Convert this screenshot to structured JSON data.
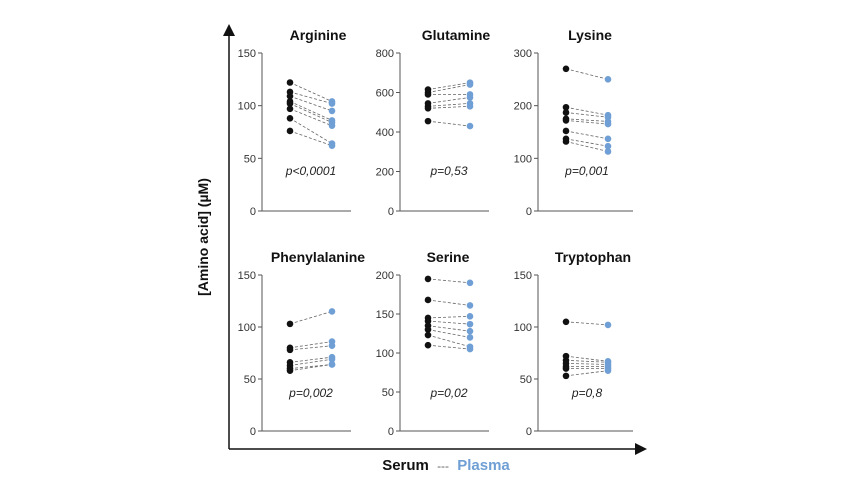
{
  "y_axis_label": "[Amino acid] (µM)",
  "legend": {
    "serum": "Serum",
    "separator": "---",
    "plasma": "Plasma",
    "serum_color": "#111111",
    "plasma_color": "#6f9fd4",
    "separator_color": "#666666"
  },
  "chart_data": [
    {
      "type": "scatter",
      "title": "Arginine",
      "ylim": [
        0,
        150
      ],
      "yticks": [
        "0",
        "50",
        "100",
        "150"
      ],
      "p_value": "p<0,0001",
      "series": [
        {
          "name": "Serum",
          "values": [
            122,
            113,
            109,
            104,
            102,
            97,
            88,
            76
          ]
        },
        {
          "name": "Plasma",
          "values": [
            104,
            102,
            95,
            86,
            84,
            81,
            64,
            62
          ]
        }
      ]
    },
    {
      "type": "scatter",
      "title": "Glutamine",
      "ylim": [
        0,
        800
      ],
      "yticks": [
        "0",
        "200",
        "400",
        "600",
        "800"
      ],
      "p_value": "p=0,53",
      "series": [
        {
          "name": "Serum",
          "values": [
            615,
            600,
            590,
            545,
            530,
            520,
            455
          ]
        },
        {
          "name": "Plasma",
          "values": [
            650,
            640,
            590,
            575,
            545,
            530,
            430
          ]
        }
      ]
    },
    {
      "type": "scatter",
      "title": "Lysine",
      "ylim": [
        0,
        300
      ],
      "yticks": [
        "0",
        "100",
        "200",
        "300"
      ],
      "p_value": "p=0,001",
      "series": [
        {
          "name": "Serum",
          "values": [
            270,
            197,
            187,
            175,
            172,
            152,
            137,
            132
          ]
        },
        {
          "name": "Plasma",
          "values": [
            250,
            182,
            178,
            170,
            165,
            137,
            123,
            113
          ]
        }
      ]
    },
    {
      "type": "scatter",
      "title": "Phenylalanine",
      "ylim": [
        0,
        150
      ],
      "yticks": [
        "0",
        "50",
        "100",
        "150"
      ],
      "p_value": "p=0,002",
      "series": [
        {
          "name": "Serum",
          "values": [
            103,
            80,
            78,
            66,
            63,
            60,
            58
          ]
        },
        {
          "name": "Plasma",
          "values": [
            115,
            86,
            82,
            71,
            69,
            64,
            64
          ]
        }
      ]
    },
    {
      "type": "scatter",
      "title": "Serine",
      "ylim": [
        0,
        200
      ],
      "yticks": [
        "0",
        "50",
        "100",
        "150",
        "200"
      ],
      "p_value": "p=0,02",
      "series": [
        {
          "name": "Serum",
          "values": [
            195,
            168,
            145,
            141,
            135,
            130,
            123,
            110
          ]
        },
        {
          "name": "Plasma",
          "values": [
            190,
            161,
            147,
            137,
            128,
            120,
            108,
            105
          ]
        }
      ]
    },
    {
      "type": "scatter",
      "title": "Tryptophan",
      "ylim": [
        0,
        150
      ],
      "yticks": [
        "0",
        "50",
        "100",
        "150"
      ],
      "p_value": "p=0,8",
      "series": [
        {
          "name": "Serum",
          "values": [
            105,
            72,
            68,
            65,
            62,
            60,
            53
          ]
        },
        {
          "name": "Plasma",
          "values": [
            102,
            67,
            66,
            64,
            62,
            60,
            58
          ]
        }
      ]
    }
  ]
}
